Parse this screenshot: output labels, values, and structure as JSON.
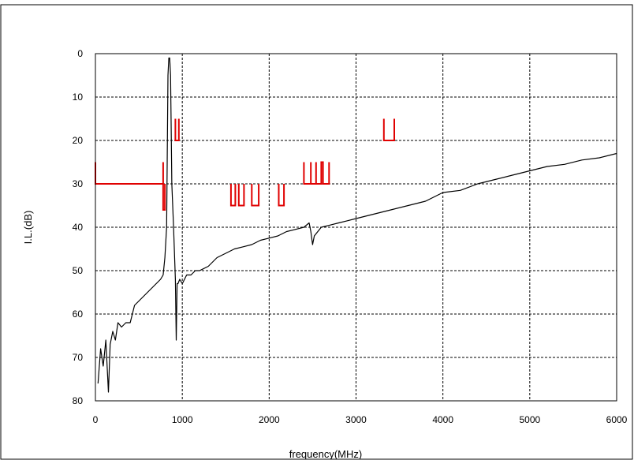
{
  "chart_data": {
    "type": "line",
    "title": "",
    "xlabel": "frequency(MHz)",
    "ylabel": "I.L.(dB)",
    "xlim": [
      0,
      6000
    ],
    "ylim": [
      0,
      80
    ],
    "y_inverted": true,
    "grid": true,
    "x_ticks": [
      "0",
      "1000",
      "2000",
      "3000",
      "4000",
      "5000",
      "6000"
    ],
    "y_ticks": [
      "0",
      "10",
      "20",
      "30",
      "40",
      "50",
      "60",
      "70",
      "80"
    ],
    "series": [
      {
        "color": "#000000",
        "x": [
          30,
          60,
          90,
          120,
          150,
          170,
          200,
          230,
          260,
          300,
          350,
          400,
          450,
          500,
          550,
          600,
          650,
          700,
          750,
          780,
          800,
          820,
          835,
          845,
          855,
          865,
          880,
          900,
          920,
          930,
          940,
          950,
          970,
          1000,
          1050,
          1100,
          1150,
          1200,
          1300,
          1400,
          1500,
          1600,
          1700,
          1800,
          1900,
          2000,
          2100,
          2200,
          2300,
          2400,
          2460,
          2480,
          2500,
          2520,
          2600,
          2700,
          2800,
          2900,
          3000,
          3200,
          3400,
          3600,
          3800,
          4000,
          4200,
          4400,
          4600,
          4800,
          5000,
          5200,
          5400,
          5600,
          5800,
          6000
        ],
        "y": [
          76,
          68,
          72,
          66,
          78,
          67,
          64,
          66,
          62,
          63,
          62,
          62,
          58,
          57,
          56,
          55,
          54,
          53,
          52,
          51,
          47,
          40,
          5,
          1,
          1,
          5,
          30,
          40,
          52,
          66,
          53,
          53,
          52,
          53,
          51,
          51,
          50,
          50,
          49,
          47,
          46,
          45,
          44.5,
          44,
          43,
          42.5,
          42,
          41,
          40.5,
          40,
          39,
          41,
          44,
          42,
          40,
          39.5,
          39,
          38.5,
          38,
          37,
          36,
          35,
          34,
          32,
          31.5,
          30,
          29,
          28,
          27,
          26,
          25.5,
          24.5,
          24,
          23
        ]
      },
      {
        "color": "#e00000",
        "segments": [
          {
            "x": [
              0,
              0,
              0,
              780,
              780,
              780
            ],
            "y": [
              25,
              30,
              30,
              30,
              25,
              30
            ]
          },
          {
            "x": [
              780,
              780,
              800,
              800
            ],
            "y": [
              30,
              36,
              36,
              30
            ]
          },
          {
            "x": [
              920,
              920,
              960,
              960
            ],
            "y": [
              15,
              20,
              20,
              15
            ]
          },
          {
            "x": [
              1560,
              1560,
              1610,
              1610
            ],
            "y": [
              30,
              35,
              35,
              30
            ]
          },
          {
            "x": [
              1650,
              1650,
              1710,
              1710
            ],
            "y": [
              30,
              35,
              35,
              30
            ]
          },
          {
            "x": [
              1800,
              1800,
              1880,
              1880
            ],
            "y": [
              30,
              35,
              35,
              30
            ]
          },
          {
            "x": [
              2110,
              2110,
              2170,
              2170
            ],
            "y": [
              30,
              35,
              35,
              30
            ]
          },
          {
            "x": [
              2400,
              2400,
              2480,
              2480,
              2480,
              2480,
              2540,
              2540,
              2540,
              2540,
              2600,
              2600,
              2620,
              2620,
              2690,
              2690
            ],
            "y": [
              25,
              30,
              30,
              25,
              25,
              30,
              30,
              25,
              25,
              30,
              30,
              25,
              25,
              30,
              30,
              25
            ]
          },
          {
            "x": [
              3320,
              3320,
              3440,
              3440
            ],
            "y": [
              15,
              20,
              20,
              15
            ]
          }
        ]
      }
    ]
  }
}
